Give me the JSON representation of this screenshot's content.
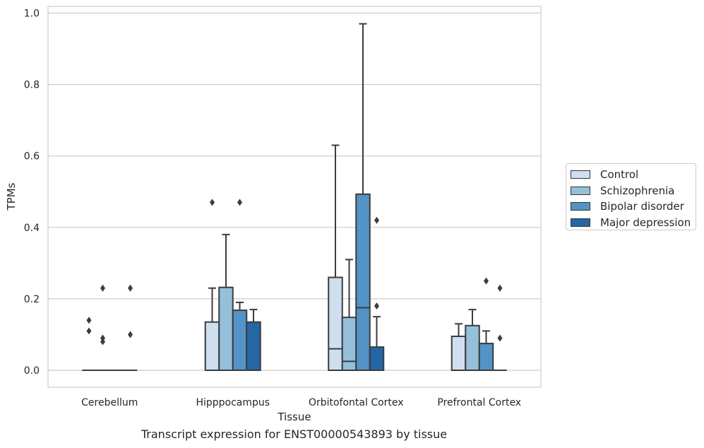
{
  "caption": "Transcript expression for ENST00000543893 by tissue",
  "legend": {
    "items": [
      {
        "label": "Control",
        "color": "#cfdfef"
      },
      {
        "label": "Schizophrenia",
        "color": "#95c0dc"
      },
      {
        "label": "Bipolar disorder",
        "color": "#5393c5"
      },
      {
        "label": "Major depression",
        "color": "#2466a6"
      }
    ]
  },
  "chart_data": {
    "type": "box",
    "xlabel": "Tissue",
    "ylabel": "TPMs",
    "ylim": [
      -0.046,
      1.02
    ],
    "yticks": [
      "0.0",
      "0.2",
      "0.4",
      "0.6",
      "0.8",
      "1.0"
    ],
    "grid": "horizontal",
    "legend_position": "right",
    "categories": [
      "Cerebellum",
      "Hipppocampus",
      "Orbitofontal Cortex",
      "Prefrontal Cortex"
    ],
    "series": [
      {
        "name": "Control",
        "boxes": [
          {
            "q1": 0,
            "median": 0,
            "q3": 0,
            "whisker_low": 0,
            "whisker_high": 0,
            "fliers": [
              0.11,
              0.14
            ]
          },
          {
            "q1": 0,
            "median": 0,
            "q3": 0.135,
            "whisker_low": 0,
            "whisker_high": 0.23,
            "fliers": [
              0.47
            ]
          },
          {
            "q1": 0,
            "median": 0.06,
            "q3": 0.26,
            "whisker_low": 0,
            "whisker_high": 0.63,
            "fliers": []
          },
          {
            "q1": 0,
            "median": 0,
            "q3": 0.095,
            "whisker_low": 0,
            "whisker_high": 0.13,
            "fliers": []
          }
        ]
      },
      {
        "name": "Schizophrenia",
        "boxes": [
          {
            "q1": 0,
            "median": 0,
            "q3": 0,
            "whisker_low": 0,
            "whisker_high": 0,
            "fliers": [
              0.08,
              0.09,
              0.23
            ]
          },
          {
            "q1": 0,
            "median": 0,
            "q3": 0.232,
            "whisker_low": 0,
            "whisker_high": 0.38,
            "fliers": []
          },
          {
            "q1": 0,
            "median": 0.025,
            "q3": 0.148,
            "whisker_low": 0,
            "whisker_high": 0.31,
            "fliers": []
          },
          {
            "q1": 0,
            "median": 0,
            "q3": 0.125,
            "whisker_low": 0,
            "whisker_high": 0.17,
            "fliers": []
          }
        ]
      },
      {
        "name": "Bipolar disorder",
        "boxes": [
          {
            "q1": 0,
            "median": 0,
            "q3": 0,
            "whisker_low": 0,
            "whisker_high": 0,
            "fliers": []
          },
          {
            "q1": 0,
            "median": 0,
            "q3": 0.168,
            "whisker_low": 0,
            "whisker_high": 0.19,
            "fliers": [
              0.47
            ]
          },
          {
            "q1": 0,
            "median": 0.175,
            "q3": 0.493,
            "whisker_low": 0,
            "whisker_high": 0.97,
            "fliers": []
          },
          {
            "q1": 0,
            "median": 0,
            "q3": 0.075,
            "whisker_low": 0,
            "whisker_high": 0.11,
            "fliers": [
              0.25
            ]
          }
        ]
      },
      {
        "name": "Major depression",
        "boxes": [
          {
            "q1": 0,
            "median": 0,
            "q3": 0,
            "whisker_low": 0,
            "whisker_high": 0,
            "fliers": [
              0.1,
              0.23
            ]
          },
          {
            "q1": 0,
            "median": 0,
            "q3": 0.135,
            "whisker_low": 0,
            "whisker_high": 0.17,
            "fliers": []
          },
          {
            "q1": 0,
            "median": 0,
            "q3": 0.065,
            "whisker_low": 0,
            "whisker_high": 0.15,
            "fliers": [
              0.18,
              0.42
            ]
          },
          {
            "q1": 0,
            "median": 0,
            "q3": 0,
            "whisker_low": 0,
            "whisker_high": 0,
            "fliers": [
              0.09,
              0.23
            ]
          }
        ]
      }
    ]
  }
}
